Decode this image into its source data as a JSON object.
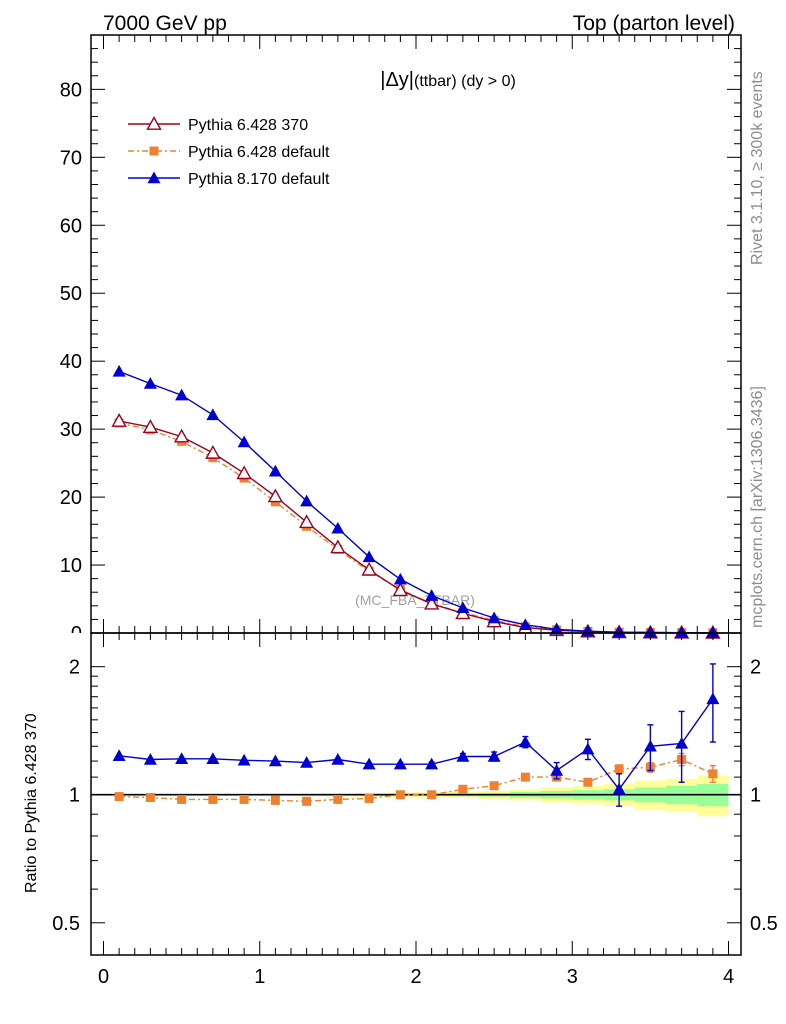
{
  "header": {
    "left": "7000 GeV pp",
    "right": "Top (parton level)"
  },
  "side_labels": {
    "rivet": "Rivet 3.1.10, ≥ 300k events",
    "mcplots": "mcplots.cern.ch [arXiv:1306.3436]"
  },
  "watermark": "(MC_FBA_TTBAR)",
  "chart_data": [
    {
      "type": "line",
      "title_main": "|Δy|",
      "title_sub": " (ttbar)  (dy > 0)",
      "xlim": [
        -0.08,
        4.08
      ],
      "ylim": [
        0,
        88
      ],
      "yticks": [
        10,
        20,
        30,
        40,
        50,
        60,
        70,
        80
      ],
      "yticklabels": [
        "10",
        "20",
        "30",
        "40",
        "50",
        "60",
        "70",
        "80"
      ],
      "x": [
        0.1,
        0.3,
        0.5,
        0.7,
        0.9,
        1.1,
        1.3,
        1.5,
        1.7,
        1.9,
        2.1,
        2.3,
        2.5,
        2.7,
        2.9,
        3.1,
        3.3,
        3.5,
        3.7,
        3.9
      ],
      "series": [
        {
          "name": "Pythia 6.428 370",
          "color": "#a0001e",
          "marker": "triangle-open",
          "values": [
            31.2,
            30.3,
            28.9,
            26.5,
            23.5,
            20.1,
            16.3,
            12.6,
            9.3,
            6.3,
            4.3,
            2.9,
            1.7,
            0.8,
            0.4,
            0.2,
            0.1,
            0.06,
            0.04,
            0.02
          ]
        },
        {
          "name": "Pythia 6.428 default",
          "color": "#f08030",
          "marker": "square",
          "values": [
            30.9,
            29.9,
            28.2,
            25.8,
            22.8,
            19.3,
            15.7,
            12.3,
            9.1,
            6.4,
            4.3,
            3.0,
            1.85,
            0.92,
            0.46,
            0.23,
            0.12,
            0.07,
            0.05,
            0.03
          ]
        },
        {
          "name": "Pythia 8.170 default",
          "color": "#0000d0",
          "marker": "triangle-filled",
          "values": [
            38.5,
            36.7,
            35.0,
            32.1,
            28.1,
            23.8,
            19.4,
            15.4,
            11.2,
            7.9,
            5.5,
            3.7,
            2.2,
            1.2,
            0.55,
            0.27,
            0.12,
            0.08,
            0.05,
            0.03
          ]
        }
      ]
    },
    {
      "type": "line",
      "ylabel": "Ratio to Pythia 6.428 370",
      "scale": "log",
      "xlim": [
        -0.08,
        4.08
      ],
      "ylim": [
        0.42,
        2.4
      ],
      "yticks": [
        0.5,
        1,
        2
      ],
      "yticklabels": [
        "0.5",
        "1",
        "2"
      ],
      "xticks": [
        0,
        1,
        2,
        3,
        4
      ],
      "xticklabels": [
        "0",
        "1",
        "2",
        "3",
        "4"
      ],
      "x": [
        0.1,
        0.3,
        0.5,
        0.7,
        0.9,
        1.1,
        1.3,
        1.5,
        1.7,
        1.9,
        2.1,
        2.3,
        2.5,
        2.7,
        2.9,
        3.1,
        3.3,
        3.5,
        3.7,
        3.9
      ],
      "reference_band": {
        "name": "Pythia 6.428 370",
        "inner_halfwidth": [
          0.003,
          0.003,
          0.003,
          0.003,
          0.003,
          0.003,
          0.004,
          0.004,
          0.005,
          0.006,
          0.007,
          0.008,
          0.01,
          0.015,
          0.02,
          0.025,
          0.03,
          0.04,
          0.05,
          0.06
        ],
        "outer_halfwidth": [
          0.006,
          0.006,
          0.006,
          0.006,
          0.006,
          0.007,
          0.008,
          0.009,
          0.01,
          0.012,
          0.014,
          0.017,
          0.022,
          0.03,
          0.04,
          0.05,
          0.06,
          0.08,
          0.09,
          0.11
        ]
      },
      "series": [
        {
          "name": "Pythia 6.428 default",
          "color": "#f08030",
          "values": [
            0.99,
            0.985,
            0.975,
            0.975,
            0.975,
            0.97,
            0.965,
            0.975,
            0.98,
            1.0,
            1.0,
            1.03,
            1.05,
            1.1,
            1.1,
            1.07,
            1.15,
            1.16,
            1.21,
            1.12
          ],
          "errors": [
            0.003,
            0.003,
            0.003,
            0.003,
            0.003,
            0.003,
            0.004,
            0.004,
            0.005,
            0.006,
            0.007,
            0.008,
            0.01,
            0.012,
            0.015,
            0.02,
            0.025,
            0.03,
            0.04,
            0.05
          ]
        },
        {
          "name": "Pythia 8.170 default",
          "color": "#0000d0",
          "values": [
            1.235,
            1.21,
            1.215,
            1.215,
            1.205,
            1.2,
            1.19,
            1.21,
            1.18,
            1.18,
            1.18,
            1.23,
            1.23,
            1.33,
            1.14,
            1.28,
            1.03,
            1.3,
            1.32,
            1.68
          ],
          "errors": [
            0.004,
            0.004,
            0.004,
            0.004,
            0.004,
            0.005,
            0.006,
            0.007,
            0.008,
            0.01,
            0.013,
            0.02,
            0.03,
            0.04,
            0.05,
            0.07,
            0.09,
            0.16,
            0.25,
            0.35
          ]
        }
      ]
    }
  ]
}
